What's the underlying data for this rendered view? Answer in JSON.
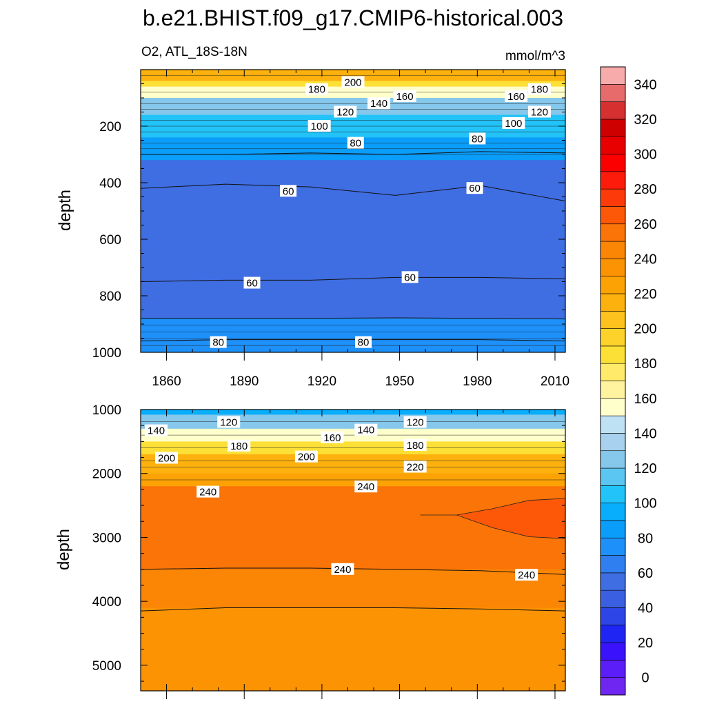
{
  "chart_data": [
    {
      "type": "contour",
      "title": "b.e21.BHIST.f09_g17.CMIP6-historical.003",
      "subtitle_left": "O2, ATL_18S-18N",
      "subtitle_right": "mmol/m^3",
      "ylabel": "depth",
      "xlim": [
        1850,
        2014
      ],
      "ylim": [
        0,
        1000
      ],
      "y_reversed": true,
      "xticks": [
        "1860",
        "1890",
        "1920",
        "1950",
        "1980",
        "2010"
      ],
      "yticks": [
        "200",
        "400",
        "600",
        "800",
        "1000"
      ],
      "bands": [
        {
          "top": 0,
          "bottom": 40,
          "value": 210
        },
        {
          "top": 40,
          "bottom": 60,
          "value": 180
        },
        {
          "top": 60,
          "bottom": 100,
          "value": 150
        },
        {
          "top": 100,
          "bottom": 160,
          "value": 120
        },
        {
          "top": 160,
          "bottom": 240,
          "value": 100
        },
        {
          "top": 240,
          "bottom": 320,
          "value": 85
        },
        {
          "top": 320,
          "bottom": 880,
          "value": 55
        },
        {
          "top": 880,
          "bottom": 1000,
          "value": 75
        }
      ],
      "contour_lines": [
        {
          "level": 80,
          "depths": [
            300,
            300,
            295,
            300,
            290,
            295
          ]
        },
        {
          "level": 60,
          "depths": [
            420,
            405,
            415,
            445,
            410,
            465
          ]
        },
        {
          "level": 60,
          "depths": [
            750,
            745,
            745,
            735,
            735,
            740
          ]
        },
        {
          "level": 80,
          "depths": [
            880,
            880,
            880,
            878,
            880,
            882
          ]
        },
        {
          "level": 80,
          "depths": [
            960,
            955,
            955,
            955,
            955,
            960
          ]
        }
      ],
      "labels": [
        {
          "text": "200",
          "year": 1932,
          "depth": 45
        },
        {
          "text": "180",
          "year": 1918,
          "depth": 70
        },
        {
          "text": "160",
          "year": 1952,
          "depth": 95
        },
        {
          "text": "160",
          "year": 1995,
          "depth": 95
        },
        {
          "text": "180",
          "year": 2004,
          "depth": 70
        },
        {
          "text": "140",
          "year": 1942,
          "depth": 120
        },
        {
          "text": "120",
          "year": 1929,
          "depth": 150
        },
        {
          "text": "120",
          "year": 2004,
          "depth": 150
        },
        {
          "text": "100",
          "year": 1919,
          "depth": 200
        },
        {
          "text": "100",
          "year": 1994,
          "depth": 190
        },
        {
          "text": "80",
          "year": 1933,
          "depth": 260
        },
        {
          "text": "80",
          "year": 1980,
          "depth": 245
        },
        {
          "text": "60",
          "year": 1907,
          "depth": 430
        },
        {
          "text": "60",
          "year": 1979,
          "depth": 420
        },
        {
          "text": "60",
          "year": 1893,
          "depth": 755
        },
        {
          "text": "60",
          "year": 1954,
          "depth": 735
        },
        {
          "text": "80",
          "year": 1880,
          "depth": 965
        },
        {
          "text": "80",
          "year": 1936,
          "depth": 965
        }
      ]
    },
    {
      "type": "contour",
      "ylabel": "depth",
      "xlim": [
        1850,
        2014
      ],
      "ylim": [
        1000,
        5400
      ],
      "y_reversed": true,
      "yticks": [
        "1000",
        "2000",
        "3000",
        "4000",
        "5000"
      ],
      "bands": [
        {
          "top": 1000,
          "bottom": 1080,
          "value": 95
        },
        {
          "top": 1080,
          "bottom": 1300,
          "value": 125
        },
        {
          "top": 1300,
          "bottom": 1500,
          "value": 155
        },
        {
          "top": 1500,
          "bottom": 1700,
          "value": 185
        },
        {
          "top": 1700,
          "bottom": 2000,
          "value": 210
        },
        {
          "top": 2000,
          "bottom": 2200,
          "value": 228
        },
        {
          "top": 2200,
          "bottom": 3500,
          "value": 250
        },
        {
          "top": 3500,
          "bottom": 4100,
          "value": 240
        },
        {
          "top": 4100,
          "bottom": 5400,
          "value": 230
        }
      ],
      "region": {
        "value": 260,
        "start_year": 1958,
        "start_depth": 2650,
        "top_depths": [
          2650,
          2550,
          2420,
          2390
        ],
        "bottom_depths": [
          2650,
          2850,
          2990,
          3020
        ],
        "end_year": 2014
      },
      "contour_lines": [
        {
          "level": 240,
          "depths": [
            3500,
            3480,
            3480,
            3500,
            3520,
            3580
          ]
        },
        {
          "level": 240,
          "depths": [
            4150,
            4100,
            4100,
            4100,
            4120,
            4150
          ]
        }
      ],
      "labels": [
        {
          "text": "120",
          "year": 1884,
          "depth": 1200
        },
        {
          "text": "140",
          "year": 1856,
          "depth": 1330
        },
        {
          "text": "120",
          "year": 1956,
          "depth": 1200
        },
        {
          "text": "140",
          "year": 1937,
          "depth": 1320
        },
        {
          "text": "160",
          "year": 1924,
          "depth": 1440
        },
        {
          "text": "180",
          "year": 1888,
          "depth": 1570
        },
        {
          "text": "180",
          "year": 1956,
          "depth": 1560
        },
        {
          "text": "200",
          "year": 1860,
          "depth": 1760
        },
        {
          "text": "200",
          "year": 1914,
          "depth": 1740
        },
        {
          "text": "220",
          "year": 1956,
          "depth": 1900
        },
        {
          "text": "240",
          "year": 1876,
          "depth": 2290
        },
        {
          "text": "240",
          "year": 1937,
          "depth": 2210
        },
        {
          "text": "240",
          "year": 1928,
          "depth": 3500
        },
        {
          "text": "240",
          "year": 1999,
          "depth": 3590
        }
      ]
    }
  ],
  "colorbar": {
    "colors": [
      "#6f26f0",
      "#5c1ef8",
      "#3a12fb",
      "#1f25f2",
      "#2d45e6",
      "#3a5fe0",
      "#3f6de2",
      "#2f7ff0",
      "#1e90fa",
      "#0a9dfa",
      "#08adfb",
      "#22c3f8",
      "#5cc6f2",
      "#86c8ec",
      "#a7d1ee",
      "#bfe1f4",
      "#ffffcc",
      "#fff3a0",
      "#ffea6a",
      "#fde036",
      "#fdd32b",
      "#fdc21d",
      "#fcb10e",
      "#fca205",
      "#fc9303",
      "#fb8504",
      "#fb7407",
      "#fc5808",
      "#fd3a0a",
      "#fd1b0b",
      "#fc0000",
      "#e80000",
      "#cf0000",
      "#d63030",
      "#e76b6b",
      "#f7abab"
    ],
    "labels": [
      "0",
      "20",
      "40",
      "60",
      "80",
      "100",
      "120",
      "140",
      "160",
      "180",
      "200",
      "220",
      "240",
      "260",
      "280",
      "300",
      "320",
      "340"
    ]
  }
}
